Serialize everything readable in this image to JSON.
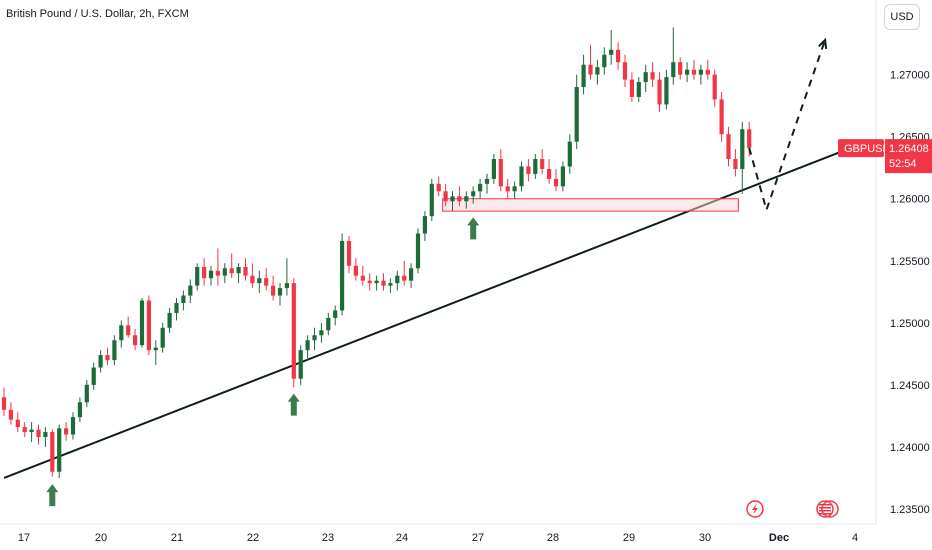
{
  "header": {
    "title": "British Pound / U.S. Dollar, 2h, FXCM",
    "currency_button": "USD"
  },
  "colors": {
    "up": "#1e6b3a",
    "down": "#f23645",
    "trend": "#0f1f16",
    "badge": "#f23645",
    "zone_fill": "#fbd3d6"
  },
  "price_badge": {
    "symbol": "GBPUSD",
    "price": "1.26408",
    "countdown": "52:54"
  },
  "event_icons": [
    "lightning-event-icon",
    "us-flag-event-icon"
  ],
  "chart_data": {
    "type": "candlestick",
    "symbol": "GBPUSD",
    "timeframe": "2h",
    "ylim": [
      1.235,
      1.274
    ],
    "y_ticks": [
      {
        "value": 1.235,
        "label": "1.23500"
      },
      {
        "value": 1.24,
        "label": "1.24000"
      },
      {
        "value": 1.245,
        "label": "1.24500"
      },
      {
        "value": 1.25,
        "label": "1.25000"
      },
      {
        "value": 1.255,
        "label": "1.25500"
      },
      {
        "value": 1.26,
        "label": "1.26000"
      },
      {
        "value": 1.265,
        "label": "1.26500"
      },
      {
        "value": 1.27,
        "label": "1.27000"
      }
    ],
    "x_ticks": [
      "17",
      "20",
      "21",
      "22",
      "23",
      "24",
      "27",
      "28",
      "29",
      "30",
      "Dec",
      "4"
    ],
    "candles": [
      [
        1.244,
        1.2448,
        1.2425,
        1.243
      ],
      [
        1.243,
        1.2436,
        1.2418,
        1.2422
      ],
      [
        1.2422,
        1.2428,
        1.2412,
        1.2416
      ],
      [
        1.2416,
        1.242,
        1.2408,
        1.2412
      ],
      [
        1.2412,
        1.242,
        1.2404,
        1.2414
      ],
      [
        1.2414,
        1.2418,
        1.2402,
        1.2408
      ],
      [
        1.2408,
        1.2416,
        1.24,
        1.2412
      ],
      [
        1.2412,
        1.2414,
        1.2376,
        1.238
      ],
      [
        1.238,
        1.2418,
        1.2375,
        1.2415
      ],
      [
        1.2415,
        1.242,
        1.2405,
        1.241
      ],
      [
        1.241,
        1.2428,
        1.2406,
        1.2424
      ],
      [
        1.2424,
        1.244,
        1.242,
        1.2436
      ],
      [
        1.2436,
        1.2454,
        1.2432,
        1.245
      ],
      [
        1.245,
        1.2468,
        1.2446,
        1.2464
      ],
      [
        1.2464,
        1.2478,
        1.246,
        1.2474
      ],
      [
        1.2474,
        1.248,
        1.2466,
        1.247
      ],
      [
        1.247,
        1.249,
        1.2466,
        1.2486
      ],
      [
        1.2486,
        1.2502,
        1.248,
        1.2498
      ],
      [
        1.2498,
        1.2505,
        1.2488,
        1.249
      ],
      [
        1.249,
        1.2495,
        1.2478,
        1.2482
      ],
      [
        1.2482,
        1.252,
        1.248,
        1.2518
      ],
      [
        1.2518,
        1.2522,
        1.2474,
        1.2478
      ],
      [
        1.2478,
        1.2486,
        1.2466,
        1.248
      ],
      [
        1.248,
        1.25,
        1.2476,
        1.2496
      ],
      [
        1.2496,
        1.2512,
        1.2492,
        1.2508
      ],
      [
        1.2508,
        1.252,
        1.2502,
        1.2516
      ],
      [
        1.2516,
        1.2526,
        1.251,
        1.2522
      ],
      [
        1.2522,
        1.2535,
        1.2516,
        1.253
      ],
      [
        1.253,
        1.2548,
        1.2526,
        1.2545
      ],
      [
        1.2545,
        1.2552,
        1.253,
        1.2536
      ],
      [
        1.2536,
        1.2546,
        1.253,
        1.2542
      ],
      [
        1.2542,
        1.256,
        1.253,
        1.2538
      ],
      [
        1.2538,
        1.2548,
        1.2532,
        1.2544
      ],
      [
        1.2544,
        1.2556,
        1.2536,
        1.254
      ],
      [
        1.254,
        1.2548,
        1.2532,
        1.2545
      ],
      [
        1.2545,
        1.2552,
        1.2534,
        1.2538
      ],
      [
        1.2538,
        1.2548,
        1.2528,
        1.2532
      ],
      [
        1.2532,
        1.2542,
        1.2524,
        1.2536
      ],
      [
        1.2536,
        1.2544,
        1.2526,
        1.253
      ],
      [
        1.253,
        1.2538,
        1.2518,
        1.2522
      ],
      [
        1.2522,
        1.2532,
        1.2514,
        1.2528
      ],
      [
        1.2528,
        1.2552,
        1.2522,
        1.2532
      ],
      [
        1.2532,
        1.2536,
        1.2448,
        1.2455
      ],
      [
        1.2455,
        1.2482,
        1.245,
        1.2478
      ],
      [
        1.2478,
        1.249,
        1.247,
        1.2486
      ],
      [
        1.2486,
        1.2496,
        1.2478,
        1.249
      ],
      [
        1.249,
        1.25,
        1.2484,
        1.2494
      ],
      [
        1.2494,
        1.2508,
        1.249,
        1.2504
      ],
      [
        1.2504,
        1.2514,
        1.2498,
        1.251
      ],
      [
        1.251,
        1.2572,
        1.2506,
        1.2566
      ],
      [
        1.2566,
        1.257,
        1.254,
        1.2546
      ],
      [
        1.2546,
        1.2552,
        1.2534,
        1.2538
      ],
      [
        1.2538,
        1.2546,
        1.253,
        1.2534
      ],
      [
        1.2534,
        1.254,
        1.2526,
        1.2532
      ],
      [
        1.2532,
        1.2538,
        1.2526,
        1.2534
      ],
      [
        1.2534,
        1.254,
        1.2526,
        1.253
      ],
      [
        1.253,
        1.2536,
        1.2524,
        1.2532
      ],
      [
        1.2532,
        1.2542,
        1.2526,
        1.2538
      ],
      [
        1.2538,
        1.255,
        1.253,
        1.2534
      ],
      [
        1.2534,
        1.2548,
        1.2528,
        1.2544
      ],
      [
        1.2544,
        1.2576,
        1.254,
        1.2572
      ],
      [
        1.2572,
        1.259,
        1.2566,
        1.2586
      ],
      [
        1.2586,
        1.2616,
        1.2582,
        1.2612
      ],
      [
        1.2612,
        1.2618,
        1.2602,
        1.2606
      ],
      [
        1.2606,
        1.2612,
        1.2594,
        1.2598
      ],
      [
        1.2598,
        1.2606,
        1.259,
        1.2602
      ],
      [
        1.2602,
        1.261,
        1.2594,
        1.2598
      ],
      [
        1.2598,
        1.2606,
        1.2592,
        1.2602
      ],
      [
        1.2602,
        1.261,
        1.2596,
        1.2606
      ],
      [
        1.2606,
        1.2616,
        1.26,
        1.2612
      ],
      [
        1.2612,
        1.262,
        1.2604,
        1.2616
      ],
      [
        1.2616,
        1.2636,
        1.2612,
        1.2632
      ],
      [
        1.2632,
        1.264,
        1.2606,
        1.261
      ],
      [
        1.261,
        1.2616,
        1.26,
        1.2606
      ],
      [
        1.2606,
        1.2614,
        1.26,
        1.261
      ],
      [
        1.261,
        1.263,
        1.2606,
        1.2626
      ],
      [
        1.2626,
        1.2632,
        1.2614,
        1.262
      ],
      [
        1.262,
        1.2636,
        1.2616,
        1.2632
      ],
      [
        1.2632,
        1.264,
        1.262,
        1.2624
      ],
      [
        1.2624,
        1.2632,
        1.2612,
        1.2616
      ],
      [
        1.2616,
        1.2624,
        1.2606,
        1.261
      ],
      [
        1.261,
        1.263,
        1.2606,
        1.2626
      ],
      [
        1.2626,
        1.2652,
        1.262,
        1.2646
      ],
      [
        1.2646,
        1.27,
        1.264,
        1.269
      ],
      [
        1.269,
        1.2716,
        1.2684,
        1.2708
      ],
      [
        1.2708,
        1.2724,
        1.2696,
        1.27
      ],
      [
        1.27,
        1.2712,
        1.2692,
        1.2706
      ],
      [
        1.2706,
        1.2722,
        1.27,
        1.2716
      ],
      [
        1.2716,
        1.2736,
        1.2708,
        1.272
      ],
      [
        1.272,
        1.2726,
        1.2704,
        1.271
      ],
      [
        1.271,
        1.2716,
        1.269,
        1.2696
      ],
      [
        1.2696,
        1.2702,
        1.2678,
        1.2682
      ],
      [
        1.2682,
        1.2698,
        1.2678,
        1.2694
      ],
      [
        1.2694,
        1.2708,
        1.2686,
        1.2702
      ],
      [
        1.2702,
        1.271,
        1.269,
        1.2696
      ],
      [
        1.2696,
        1.2702,
        1.267,
        1.2676
      ],
      [
        1.2676,
        1.2704,
        1.2672,
        1.2698
      ],
      [
        1.2698,
        1.2738,
        1.2692,
        1.271
      ],
      [
        1.271,
        1.2714,
        1.2696,
        1.27
      ],
      [
        1.27,
        1.271,
        1.2694,
        1.2704
      ],
      [
        1.2704,
        1.2712,
        1.2696,
        1.27
      ],
      [
        1.27,
        1.2708,
        1.2692,
        1.2704
      ],
      [
        1.2704,
        1.2712,
        1.2696,
        1.27
      ],
      [
        1.27,
        1.2704,
        1.2674,
        1.268
      ],
      [
        1.268,
        1.2686,
        1.2646,
        1.2652
      ],
      [
        1.2652,
        1.2658,
        1.2626,
        1.2632
      ],
      [
        1.2632,
        1.264,
        1.2618,
        1.2624
      ],
      [
        1.2624,
        1.2662,
        1.2604,
        1.2656
      ],
      [
        1.2656,
        1.2662,
        1.2634,
        1.2641
      ]
    ],
    "trendline": [
      [
        1.2375,
        0
      ],
      [
        1.2609,
        108
      ]
    ],
    "support_zone": {
      "from_index": 64,
      "to_index": 106,
      "low": 1.259,
      "high": 1.26
    },
    "projection": [
      [
        1.2641,
        108
      ],
      [
        1.2591,
        110.5
      ],
      [
        1.2728,
        119
      ]
    ],
    "arrows": [
      {
        "index": 7,
        "price": 1.237,
        "direction": "up"
      },
      {
        "index": 42,
        "price": 1.2443,
        "direction": "up"
      },
      {
        "index": 68,
        "price": 1.2585,
        "direction": "up"
      }
    ]
  }
}
